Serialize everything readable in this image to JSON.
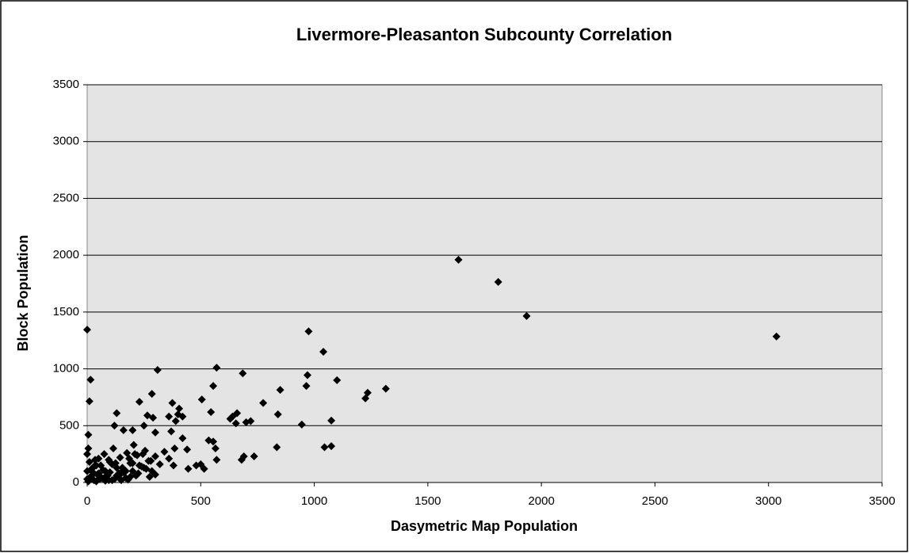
{
  "chart_data": {
    "type": "scatter",
    "title": "Livermore-Pleasanton Subcounty Correlation",
    "x_label": "Dasymetric Map Population",
    "y_label": "Block Population",
    "xlim": [
      0,
      3500
    ],
    "ylim": [
      0,
      3500
    ],
    "xticks": [
      0,
      500,
      1000,
      1500,
      2000,
      2500,
      3000,
      3500
    ],
    "yticks": [
      0,
      500,
      1000,
      1500,
      2000,
      2500,
      3000,
      3500
    ],
    "grid": true,
    "series": [
      {
        "color": "#000000",
        "x": [
          1635,
          1810,
          1935,
          3035,
          975,
          1040,
          970,
          965,
          1100,
          1315,
          1235,
          1225,
          1075,
          1075,
          1045,
          945,
          835,
          850,
          840,
          775,
          735,
          720,
          700,
          685,
          690,
          680,
          655,
          640,
          630,
          660,
          570,
          555,
          545,
          535,
          555,
          565,
          570,
          515,
          500,
          480,
          505,
          445,
          440,
          420,
          420,
          405,
          400,
          390,
          375,
          385,
          370,
          360,
          310,
          285,
          265,
          290,
          300,
          230,
          250,
          200,
          160,
          130,
          120,
          0,
          15,
          10,
          5,
          20,
          35,
          50,
          60,
          75,
          90,
          100,
          115,
          130,
          145,
          160,
          175,
          190,
          205,
          220,
          240,
          255,
          270,
          285,
          300,
          320,
          340,
          360,
          380,
          10,
          25,
          40,
          55,
          70,
          85,
          95,
          110,
          125,
          140,
          155,
          170,
          185,
          200,
          215,
          230,
          245,
          260,
          280,
          300,
          5,
          15,
          30,
          45,
          60,
          80,
          100,
          120,
          140,
          160,
          180,
          200,
          225,
          250,
          275,
          0,
          0,
          0,
          5,
          10,
          20,
          30,
          40,
          50,
          65,
          80,
          95,
          110,
          130,
          150,
          170,
          190,
          210
        ],
        "y": [
          1960,
          1765,
          1465,
          1285,
          1330,
          1150,
          945,
          850,
          900,
          825,
          790,
          740,
          545,
          320,
          310,
          510,
          310,
          815,
          600,
          700,
          230,
          540,
          530,
          960,
          230,
          200,
          520,
          580,
          560,
          610,
          1010,
          850,
          620,
          370,
          360,
          300,
          200,
          120,
          160,
          150,
          730,
          120,
          290,
          390,
          580,
          650,
          600,
          540,
          700,
          300,
          450,
          580,
          990,
          780,
          590,
          570,
          440,
          710,
          500,
          460,
          460,
          610,
          500,
          1345,
          905,
          715,
          420,
          120,
          200,
          80,
          150,
          250,
          60,
          180,
          300,
          130,
          220,
          90,
          260,
          170,
          330,
          240,
          140,
          280,
          190,
          100,
          230,
          160,
          270,
          210,
          150,
          40,
          90,
          150,
          30,
          110,
          60,
          200,
          20,
          170,
          80,
          130,
          40,
          210,
          100,
          60,
          150,
          250,
          120,
          190,
          70,
          10,
          50,
          20,
          70,
          40,
          15,
          90,
          30,
          60,
          110,
          25,
          170,
          80,
          130,
          50,
          30,
          100,
          250,
          300,
          180,
          60,
          140,
          10,
          210,
          40,
          100,
          20,
          160,
          60,
          20,
          100,
          50,
          250
        ]
      }
    ]
  }
}
